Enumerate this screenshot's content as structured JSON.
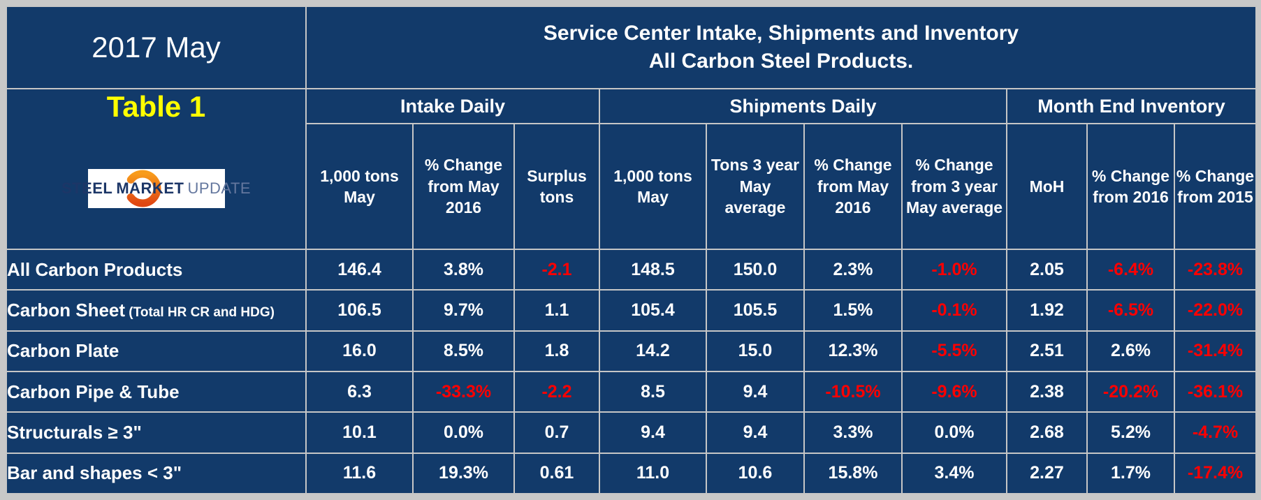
{
  "header": {
    "period": "2017 May",
    "table_label": "Table 1",
    "title_line1": "Service Center Intake, Shipments and Inventory",
    "title_line2": "All Carbon Steel Products."
  },
  "logo": {
    "steel": "STEEL",
    "market": "MARKET",
    "update": "UPDATE"
  },
  "colors": {
    "background_navy": "#123A6A",
    "grid_gray": "#C6C6C6",
    "page_margin_gray": "#C8C8C8",
    "highlight_yellow": "#FFFF00",
    "negative_red": "#FF0000",
    "text_white": "#FFFFFF",
    "logo_navy": "#1C3667",
    "logo_update_blue": "#64779E",
    "logo_orange": "#F05A22"
  },
  "chart_data": {
    "type": "table",
    "title": "Service Center Intake, Shipments and Inventory",
    "subtitle": "All Carbon Steel Products.",
    "period": "2017 May",
    "table_label": "Table 1",
    "units_note": "negative values rendered in red",
    "column_groups": [
      {
        "label": "Intake Daily",
        "span": 3
      },
      {
        "label": "Shipments Daily",
        "span": 4
      },
      {
        "label": "Month End Inventory",
        "span": 3
      }
    ],
    "columns": [
      "1,000 tons May",
      "% Change from May 2016",
      "Surplus tons",
      "1,000 tons May",
      "Tons 3 year May average",
      "% Change from May 2016",
      "% Change from 3 year May average",
      "MoH",
      "% Change from 2016",
      "% Change from 2015"
    ],
    "rows": [
      {
        "label": "All Carbon Products",
        "note": "",
        "values": [
          "146.4",
          "3.8%",
          "-2.1",
          "148.5",
          "150.0",
          "2.3%",
          "-1.0%",
          "2.05",
          "-6.4%",
          "-23.8%"
        ]
      },
      {
        "label": "Carbon Sheet",
        "note": "(Total HR CR and HDG)",
        "values": [
          "106.5",
          "9.7%",
          "1.1",
          "105.4",
          "105.5",
          "1.5%",
          "-0.1%",
          "1.92",
          "-6.5%",
          "-22.0%"
        ]
      },
      {
        "label": "Carbon Plate",
        "note": "",
        "values": [
          "16.0",
          "8.5%",
          "1.8",
          "14.2",
          "15.0",
          "12.3%",
          "-5.5%",
          "2.51",
          "2.6%",
          "-31.4%"
        ]
      },
      {
        "label": "Carbon Pipe & Tube",
        "note": "",
        "values": [
          "6.3",
          "-33.3%",
          "-2.2",
          "8.5",
          "9.4",
          "-10.5%",
          "-9.6%",
          "2.38",
          "-20.2%",
          "-36.1%"
        ]
      },
      {
        "label": "Structurals ≥ 3\"",
        "note": "",
        "values": [
          "10.1",
          "0.0%",
          "0.7",
          "9.4",
          "9.4",
          "3.3%",
          "0.0%",
          "2.68",
          "5.2%",
          "-4.7%"
        ]
      },
      {
        "label": "Bar and shapes < 3\"",
        "note": "",
        "values": [
          "11.6",
          "19.3%",
          "0.61",
          "11.0",
          "10.6",
          "15.8%",
          "3.4%",
          "2.27",
          "1.7%",
          "-17.4%"
        ]
      }
    ]
  }
}
